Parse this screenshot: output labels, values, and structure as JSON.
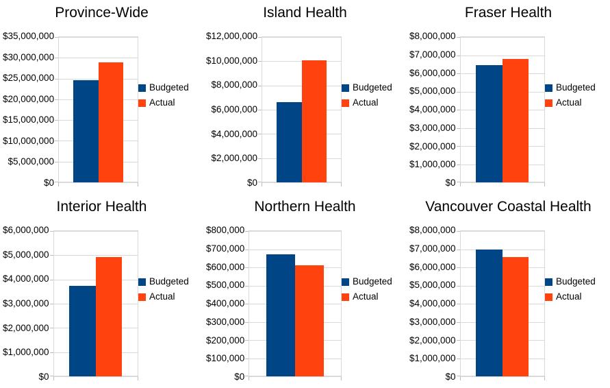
{
  "page": {
    "background": "#ffffff",
    "text_color": "#000000",
    "grid_color": "#d9d9d9",
    "tick_color": "#bdbdbd"
  },
  "series_colors": {
    "budgeted": "#004586",
    "actual": "#ff420e"
  },
  "chart_data": [
    {
      "type": "bar",
      "title": "Province-Wide",
      "series": [
        {
          "name": "Budgeted",
          "value": 24600000
        },
        {
          "name": "Actual",
          "value": 28900000
        }
      ],
      "ylim": [
        0,
        35000000
      ],
      "ytick_step": 5000000,
      "ytick_prefix": "$",
      "xlabel": "",
      "ylabel": "",
      "grid": "horizontal",
      "legend_position": "right"
    },
    {
      "type": "bar",
      "title": "Island Health",
      "series": [
        {
          "name": "Budgeted",
          "value": 6650000
        },
        {
          "name": "Actual",
          "value": 10100000
        }
      ],
      "ylim": [
        0,
        12000000
      ],
      "ytick_step": 2000000,
      "ytick_prefix": "$",
      "xlabel": "",
      "ylabel": "",
      "grid": "horizontal",
      "legend_position": "right"
    },
    {
      "type": "bar",
      "title": "Fraser Health",
      "series": [
        {
          "name": "Budgeted",
          "value": 6450000
        },
        {
          "name": "Actual",
          "value": 6780000
        }
      ],
      "ylim": [
        0,
        8000000
      ],
      "ytick_step": 1000000,
      "ytick_prefix": "$",
      "xlabel": "",
      "ylabel": "",
      "grid": "horizontal",
      "legend_position": "right"
    },
    {
      "type": "bar",
      "title": "Interior Health",
      "series": [
        {
          "name": "Budgeted",
          "value": 3730000
        },
        {
          "name": "Actual",
          "value": 4920000
        }
      ],
      "ylim": [
        0,
        6000000
      ],
      "ytick_step": 1000000,
      "ytick_prefix": "$",
      "xlabel": "",
      "ylabel": "",
      "grid": "horizontal",
      "legend_position": "right"
    },
    {
      "type": "bar",
      "title": "Northern Health",
      "series": [
        {
          "name": "Budgeted",
          "value": 672000
        },
        {
          "name": "Actual",
          "value": 613000
        }
      ],
      "ylim": [
        0,
        800000
      ],
      "ytick_step": 100000,
      "ytick_prefix": "$",
      "xlabel": "",
      "ylabel": "",
      "grid": "horizontal",
      "legend_position": "right"
    },
    {
      "type": "bar",
      "title": "Vancouver Coastal Health",
      "series": [
        {
          "name": "Budgeted",
          "value": 7000000
        },
        {
          "name": "Actual",
          "value": 6550000
        }
      ],
      "ylim": [
        0,
        8000000
      ],
      "ytick_step": 1000000,
      "ytick_prefix": "$",
      "xlabel": "",
      "ylabel": "",
      "grid": "horizontal",
      "legend_position": "right"
    }
  ]
}
